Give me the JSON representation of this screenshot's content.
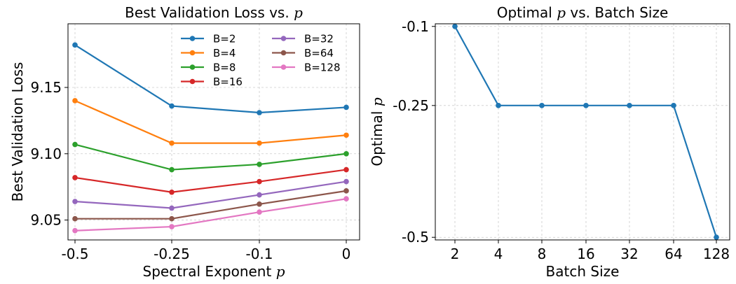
{
  "chart_data": [
    {
      "type": "line",
      "title": "Best Validation Loss vs. ",
      "title_var": "p",
      "xlabel": "Spectral Exponent ",
      "xlabel_var": "p",
      "ylabel": "Best Validation Loss",
      "categories": [
        "-0.5",
        "-0.25",
        "-0.1",
        "0"
      ],
      "ylim": [
        9.035,
        9.198
      ],
      "yticks": [
        9.05,
        9.1,
        9.15
      ],
      "ytick_labels": [
        "9.05",
        "9.10",
        "9.15"
      ],
      "grid": true,
      "legend": "top-right, 2 columns",
      "series": [
        {
          "name": "B=2",
          "color": "#1f77b4",
          "values": [
            9.182,
            9.136,
            9.131,
            9.135
          ]
        },
        {
          "name": "B=4",
          "color": "#ff7f0e",
          "values": [
            9.14,
            9.108,
            9.108,
            9.114
          ]
        },
        {
          "name": "B=8",
          "color": "#2ca02c",
          "values": [
            9.107,
            9.088,
            9.092,
            9.1
          ]
        },
        {
          "name": "B=16",
          "color": "#d62728",
          "values": [
            9.082,
            9.071,
            9.079,
            9.088
          ]
        },
        {
          "name": "B=32",
          "color": "#9467bd",
          "values": [
            9.064,
            9.059,
            9.069,
            9.079
          ]
        },
        {
          "name": "B=64",
          "color": "#8c564b",
          "values": [
            9.051,
            9.051,
            9.062,
            9.072
          ]
        },
        {
          "name": "B=128",
          "color": "#e377c2",
          "values": [
            9.042,
            9.045,
            9.056,
            9.066
          ]
        }
      ]
    },
    {
      "type": "line",
      "title": "Optimal ",
      "title_var": "p",
      "title_suffix": " vs. Batch Size",
      "xlabel": "Batch Size",
      "ylabel": "Optimal ",
      "ylabel_var": "p",
      "categories": [
        "2",
        "4",
        "8",
        "16",
        "32",
        "64",
        "128"
      ],
      "ylim": [
        -0.505,
        -0.095
      ],
      "yticks": [
        -0.5,
        -0.25,
        -0.1
      ],
      "ytick_labels": [
        "-0.5",
        "-0.25",
        "-0.1"
      ],
      "grid": true,
      "series": [
        {
          "color": "#1f77b4",
          "values": [
            -0.1,
            -0.25,
            -0.25,
            -0.25,
            -0.25,
            -0.25,
            -0.5
          ]
        }
      ]
    }
  ]
}
